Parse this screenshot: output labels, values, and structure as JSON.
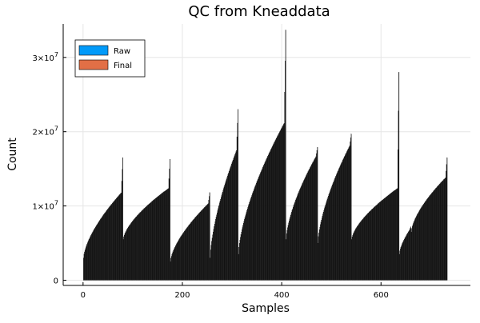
{
  "chart_data": {
    "type": "bar",
    "title": "QC from Kneaddata",
    "xlabel": "Samples",
    "ylabel": "Count",
    "xlim": [
      -40,
      780
    ],
    "ylim": [
      -700000,
      34500000
    ],
    "x_ticks": [
      {
        "value": 0,
        "label": "0"
      },
      {
        "value": 200,
        "label": "200"
      },
      {
        "value": 400,
        "label": "400"
      },
      {
        "value": 600,
        "label": "600"
      }
    ],
    "y_ticks": [
      {
        "value": 0,
        "label": "0",
        "mantissa": "",
        "exponent": ""
      },
      {
        "value": 10000000,
        "label": "",
        "mantissa": "1×10",
        "exponent": "7"
      },
      {
        "value": 20000000,
        "label": "",
        "mantissa": "2×10",
        "exponent": "7"
      },
      {
        "value": 30000000,
        "label": "",
        "mantissa": "3×10",
        "exponent": "7"
      }
    ],
    "legend_position": "top-left",
    "grid": true,
    "series": [
      {
        "name": "Raw",
        "color": "#009af9"
      },
      {
        "name": "Final",
        "color": "#e26f46"
      }
    ],
    "groups_description": "Samples are sorted by count within each of 10 groups; each bar is a sample.",
    "groups": [
      {
        "x_start": 1,
        "x_end": 80,
        "y_start": 3000000,
        "y_end": 12000000,
        "peak": 16500000
      },
      {
        "x_start": 81,
        "x_end": 175,
        "y_start": 5500000,
        "y_end": 12500000,
        "peak": 16300000
      },
      {
        "x_start": 176,
        "x_end": 255,
        "y_start": 2500000,
        "y_end": 10500000,
        "peak": 11800000
      },
      {
        "x_start": 256,
        "x_end": 312,
        "y_start": 3000000,
        "y_end": 18000000,
        "peak": 23000000
      },
      {
        "x_start": 313,
        "x_end": 408,
        "y_start": 3500000,
        "y_end": 21500000,
        "peak": 33700000
      },
      {
        "x_start": 409,
        "x_end": 472,
        "y_start": 5500000,
        "y_end": 17000000,
        "peak": 17900000
      },
      {
        "x_start": 473,
        "x_end": 540,
        "y_start": 5000000,
        "y_end": 18500000,
        "peak": 19700000
      },
      {
        "x_start": 541,
        "x_end": 636,
        "y_start": 5500000,
        "y_end": 12500000,
        "peak": 28000000
      },
      {
        "x_start": 637,
        "x_end": 660,
        "y_start": 3500000,
        "y_end": 7000000,
        "peak": 7200000
      },
      {
        "x_start": 661,
        "x_end": 733,
        "y_start": 6500000,
        "y_end": 14000000,
        "peak": 16500000
      }
    ]
  }
}
